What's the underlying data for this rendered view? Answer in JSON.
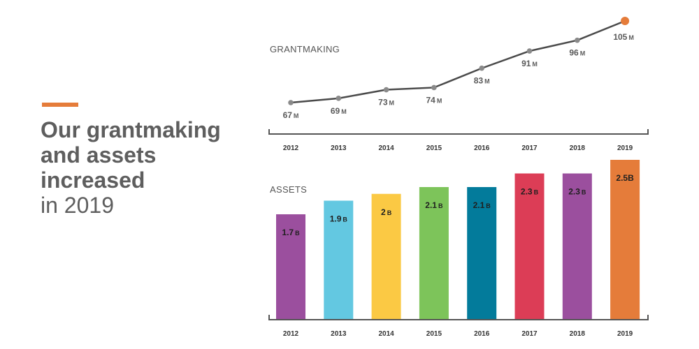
{
  "headline": {
    "bold_lines": [
      "Our grantmaking",
      "and assets",
      "increased"
    ],
    "light_line": "in 2019"
  },
  "colors": {
    "accent": "#e57c3a",
    "line": "#4a4a4a",
    "point": "#8a8a8a",
    "last_point": "#e57c3a",
    "axis": "#555555"
  },
  "chart_data": [
    {
      "type": "line",
      "title": "GRANTMAKING",
      "categories": [
        "2012",
        "2013",
        "2014",
        "2015",
        "2016",
        "2017",
        "2018",
        "2019"
      ],
      "values": [
        67,
        69,
        73,
        74,
        83,
        91,
        96,
        105
      ],
      "value_labels": [
        "67",
        "69",
        "73",
        "74",
        "83",
        "91",
        "96",
        "105"
      ],
      "unit": "M",
      "highlight_last": true
    },
    {
      "type": "bar",
      "title": "ASSETS",
      "categories": [
        "2012",
        "2013",
        "2014",
        "2015",
        "2016",
        "2017",
        "2018",
        "2019"
      ],
      "values": [
        1.7,
        1.9,
        2.0,
        2.1,
        2.1,
        2.3,
        2.3,
        2.5
      ],
      "value_labels": [
        "1.7",
        "1.9",
        "2",
        "2.1",
        "2.1",
        "2.3",
        "2.3",
        "2.5B"
      ],
      "unit_labels": [
        "B",
        "B",
        "B",
        "B",
        "B",
        "B",
        "B",
        ""
      ],
      "bar_colors": [
        "#9b4f9e",
        "#63c8e1",
        "#fbc944",
        "#7dc45a",
        "#037b9b",
        "#dc3d56",
        "#9b4f9e",
        "#e57c3a"
      ]
    }
  ]
}
